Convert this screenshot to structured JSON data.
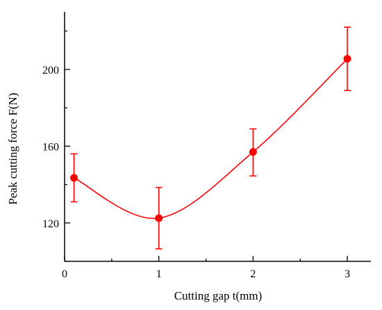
{
  "chart_data": {
    "type": "line",
    "title": "",
    "xlabel": "Cutting gap t(mm)",
    "ylabel": "Peak cutting force F(N)",
    "xlim": [
      0,
      3.25
    ],
    "ylim": [
      100,
      230
    ],
    "xticks": [
      0,
      1,
      2,
      3
    ],
    "yticks": [
      120,
      160,
      200
    ],
    "grid": false,
    "legend": "none",
    "line_style": "smooth",
    "color": "#ff0000",
    "series": [
      {
        "x": [
          0.1,
          1,
          2,
          3
        ],
        "y": [
          143.5,
          122.5,
          157,
          205.5
        ],
        "error_upper": [
          156,
          138.5,
          169,
          222
        ],
        "error_lower": [
          131,
          106.5,
          144.5,
          189
        ]
      }
    ]
  }
}
